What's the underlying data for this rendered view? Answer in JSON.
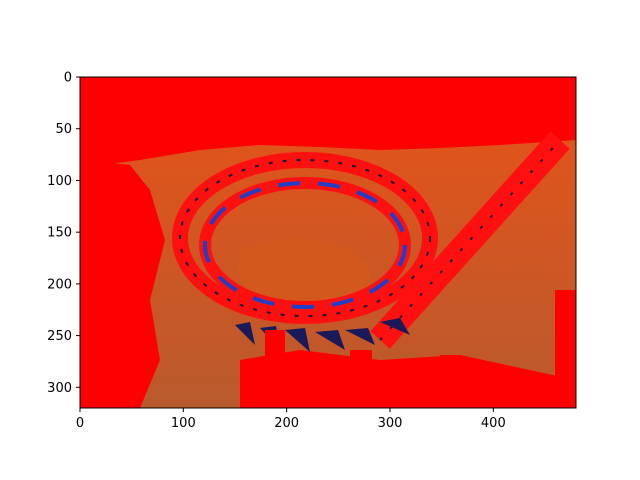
{
  "chart_data": {
    "type": "image",
    "title": "",
    "xlabel": "",
    "ylabel": "",
    "xlim": [
      0,
      480
    ],
    "ylim": [
      320,
      0
    ],
    "y_inverted": true,
    "grid": false,
    "xticks": [
      0,
      100,
      200,
      300,
      400
    ],
    "yticks": [
      0,
      50,
      100,
      150,
      200,
      250,
      300
    ],
    "image_content": "false-color photo of a roller coaster loop track",
    "colors": {
      "background_red": "#ff0000",
      "sky_orange": "#c8501e",
      "track_red": "#ff1010",
      "track_dark": "#1a1a3a",
      "track_blue": "#1f3fc8",
      "tie_dark": "#3a2030"
    }
  }
}
